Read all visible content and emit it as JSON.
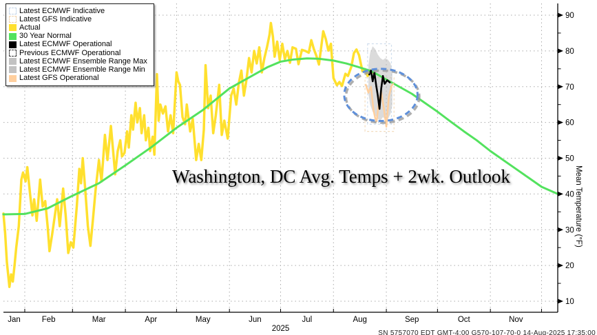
{
  "title": {
    "text": "Washington, DC Avg. Temps + 2wk. Outlook"
  },
  "y_axis": {
    "label": "Mean Temperature (°F)",
    "major_ticks": [
      10,
      20,
      30,
      40,
      50,
      60,
      70,
      80,
      90
    ],
    "minor_ticks": [
      15,
      25,
      35,
      45,
      55,
      65,
      75,
      85
    ]
  },
  "x_axis": {
    "year_label": "2025",
    "months": [
      {
        "label": "Jan",
        "center_day": 6.25
      },
      {
        "label": "Feb",
        "center_day": 26.5
      },
      {
        "label": "Mar",
        "center_day": 56
      },
      {
        "label": "Apr",
        "center_day": 86.5
      },
      {
        "label": "May",
        "center_day": 117
      },
      {
        "label": "Jun",
        "center_day": 147.5
      },
      {
        "label": "Jul",
        "center_day": 178
      },
      {
        "label": "Aug",
        "center_day": 209
      },
      {
        "label": "Sep",
        "center_day": 239.5
      },
      {
        "label": "Oct",
        "center_day": 270
      },
      {
        "label": "Nov",
        "center_day": 300.5
      }
    ],
    "month_boundary_days": [
      12.5,
      40.5,
      71.5,
      101.5,
      132.5,
      162.5,
      193.5,
      224.5,
      254.5,
      285.5,
      315.5
    ]
  },
  "footer": {
    "text": "SN 5757070 EDT   GMT-4:00 G570-107-70-0   14-Aug-2025 17:35:00"
  },
  "legend": {
    "items": [
      {
        "label": "Latest ECMWF Indicative",
        "swatch": "dashed",
        "fill": "#ffffff",
        "border": "#c3d4e8"
      },
      {
        "label": "Latest GFS Indicative",
        "swatch": "dashed",
        "fill": "#ffffff",
        "border": "#f0d2ab"
      },
      {
        "label": "Actual",
        "swatch": "solid",
        "fill": "#ffe02e"
      },
      {
        "label": "30 Year Normal",
        "swatch": "solid",
        "fill": "#53e25e"
      },
      {
        "label": "Latest ECMWF Operational",
        "swatch": "solid",
        "fill": "#000000"
      },
      {
        "label": "Previous ECMWF Operational",
        "swatch": "dashed",
        "fill": "#ffffff",
        "border": "#333333"
      },
      {
        "label": "Latest ECMWF Ensemble Range Max",
        "swatch": "solid",
        "fill": "#c2c2c2"
      },
      {
        "label": "Latest ECMWF Ensemble Range Min",
        "swatch": "solid",
        "fill": "#c2c2c2"
      },
      {
        "label": "Latest GFS Operational",
        "swatch": "solid",
        "fill": "#ffcf9e"
      }
    ]
  },
  "chart_data": {
    "type": "line",
    "title": "Washington, DC Avg. Temps + 2wk. Outlook",
    "xlabel": "2025 (Jan–Dec, daily)",
    "ylabel": "Mean Temperature (°F)",
    "ylim": [
      7,
      93
    ],
    "x_start": "2025-01-19",
    "x_unit": "days since chart start (Jan 19 2025)",
    "x_total_days": 325,
    "grid": "dotted",
    "legend_position": "top-left",
    "series": [
      {
        "name": "Actual",
        "color": "#ffe02e",
        "width": 3.5,
        "points": [
          [
            0,
            34.5
          ],
          [
            1,
            29
          ],
          [
            2,
            21
          ],
          [
            3.5,
            14
          ],
          [
            4.5,
            17.5
          ],
          [
            5.5,
            15.5
          ],
          [
            6.5,
            20
          ],
          [
            7.5,
            25
          ],
          [
            9,
            31
          ],
          [
            10.5,
            44
          ],
          [
            11.5,
            46
          ],
          [
            13,
            43.5
          ],
          [
            14,
            47.5
          ],
          [
            15.5,
            40.5
          ],
          [
            17,
            34
          ],
          [
            18,
            38.5
          ],
          [
            19.5,
            32.5
          ],
          [
            21.5,
            44
          ],
          [
            23,
            36.5
          ],
          [
            24.5,
            38
          ],
          [
            26,
            30.5
          ],
          [
            27,
            24
          ],
          [
            28.5,
            28.5
          ],
          [
            30,
            33.5
          ],
          [
            31.5,
            38.5
          ],
          [
            33,
            31
          ],
          [
            35,
            41.5
          ],
          [
            36.5,
            34
          ],
          [
            38,
            23.5
          ],
          [
            39.5,
            26.5
          ],
          [
            41,
            25
          ],
          [
            43,
            36.5
          ],
          [
            44.5,
            47
          ],
          [
            45.5,
            43
          ],
          [
            46.5,
            50
          ],
          [
            48,
            41
          ],
          [
            49.5,
            31
          ],
          [
            51,
            25.5
          ],
          [
            52.5,
            33
          ],
          [
            54,
            41
          ],
          [
            56,
            49.5
          ],
          [
            57.5,
            43.5
          ],
          [
            59.5,
            56.5
          ],
          [
            61,
            49.5
          ],
          [
            63,
            59
          ],
          [
            64.5,
            51
          ],
          [
            65.5,
            45.5
          ],
          [
            67,
            52
          ],
          [
            68.5,
            55
          ],
          [
            69.5,
            50.5
          ],
          [
            71,
            51.5
          ],
          [
            72.5,
            57.5
          ],
          [
            73.5,
            53
          ],
          [
            75,
            62
          ],
          [
            76,
            58
          ],
          [
            77.5,
            65.5
          ],
          [
            78.5,
            60
          ],
          [
            80,
            64
          ],
          [
            81,
            57
          ],
          [
            82.5,
            62
          ],
          [
            83.5,
            55
          ],
          [
            85,
            58.5
          ],
          [
            86,
            52
          ],
          [
            87.5,
            56
          ],
          [
            88.5,
            51
          ],
          [
            90,
            73.5
          ],
          [
            91,
            60.5
          ],
          [
            92,
            65
          ],
          [
            93.5,
            62.5
          ],
          [
            95,
            64.5
          ],
          [
            96.5,
            57.5
          ],
          [
            98,
            62
          ],
          [
            99.5,
            57
          ],
          [
            101.5,
            74
          ],
          [
            102.5,
            71.5
          ],
          [
            103.5,
            70.5
          ],
          [
            105,
            61.5
          ],
          [
            106.5,
            59.5
          ],
          [
            107.5,
            65
          ],
          [
            109.5,
            57.5
          ],
          [
            111,
            61
          ],
          [
            113,
            49.5
          ],
          [
            114.5,
            54
          ],
          [
            116,
            49.5
          ],
          [
            117.5,
            58
          ],
          [
            118.5,
            76
          ],
          [
            120,
            64
          ],
          [
            121.5,
            67.5
          ],
          [
            123,
            57
          ],
          [
            124.5,
            62
          ],
          [
            126.5,
            70.5
          ],
          [
            128,
            56.5
          ],
          [
            129.5,
            60.5
          ],
          [
            131.5,
            55.5
          ],
          [
            133.5,
            67.5
          ],
          [
            135,
            69.5
          ],
          [
            136.5,
            65
          ],
          [
            138,
            71
          ],
          [
            139.5,
            74.5
          ],
          [
            141,
            67.5
          ],
          [
            142.5,
            72
          ],
          [
            144,
            78
          ],
          [
            145.5,
            74
          ],
          [
            147,
            80
          ],
          [
            148.5,
            76.5
          ],
          [
            150,
            81
          ],
          [
            151.5,
            74
          ],
          [
            153,
            78
          ],
          [
            154.5,
            81
          ],
          [
            156,
            84.5
          ],
          [
            156.8,
            87.8
          ],
          [
            158,
            84
          ],
          [
            159,
            78.4
          ],
          [
            160.5,
            82.6
          ],
          [
            162,
            77.5
          ],
          [
            163.5,
            82
          ],
          [
            165,
            77.7
          ],
          [
            166.5,
            80
          ],
          [
            168,
            76.7
          ],
          [
            169.5,
            81
          ],
          [
            171.5,
            80.6
          ],
          [
            173,
            76.3
          ],
          [
            175,
            80.3
          ],
          [
            177,
            80
          ],
          [
            179,
            79.5
          ],
          [
            180.5,
            83
          ],
          [
            182,
            80.5
          ],
          [
            183.5,
            78.6
          ],
          [
            185,
            76.2
          ],
          [
            187.5,
            85.5
          ],
          [
            189,
            83.3
          ],
          [
            190.5,
            80.1
          ],
          [
            192,
            82
          ],
          [
            193.5,
            72.4
          ],
          [
            195.5,
            70.4
          ],
          [
            197,
            71.3
          ],
          [
            198.5,
            70.2
          ],
          [
            200.5,
            73.6
          ],
          [
            202,
            73
          ],
          [
            204,
            75.6
          ],
          [
            205.5,
            79.4
          ],
          [
            207,
            80.4
          ],
          [
            208.5,
            78.8
          ],
          [
            210.5,
            74.3
          ],
          [
            212,
            74.9
          ],
          [
            213.5,
            73
          ],
          [
            215,
            74.5
          ],
          [
            216.5,
            74
          ]
        ]
      },
      {
        "name": "30 Year Normal",
        "color": "#53e25e",
        "width": 3,
        "points": [
          [
            0,
            34.3
          ],
          [
            12.5,
            34.4
          ],
          [
            26,
            36
          ],
          [
            40.5,
            39.5
          ],
          [
            56,
            43
          ],
          [
            71.5,
            48
          ],
          [
            86.5,
            53
          ],
          [
            101.5,
            58.5
          ],
          [
            117,
            63.5
          ],
          [
            132.5,
            69.5
          ],
          [
            140,
            71.5
          ],
          [
            147.5,
            73.5
          ],
          [
            155,
            75.5
          ],
          [
            162.5,
            77
          ],
          [
            170,
            77.6
          ],
          [
            178,
            77.9
          ],
          [
            185,
            77.8
          ],
          [
            193.5,
            77.3
          ],
          [
            201,
            76.5
          ],
          [
            208,
            75.5
          ],
          [
            216,
            74.3
          ],
          [
            224.5,
            72
          ],
          [
            232,
            70
          ],
          [
            239.5,
            68
          ],
          [
            247,
            65.5
          ],
          [
            254.5,
            63
          ],
          [
            262,
            60.3
          ],
          [
            270,
            57.5
          ],
          [
            277.5,
            55
          ],
          [
            285.5,
            52
          ],
          [
            293,
            49.5
          ],
          [
            300.5,
            47
          ],
          [
            308,
            44.5
          ],
          [
            315.5,
            42
          ],
          [
            325,
            40
          ]
        ]
      },
      {
        "name": "Latest GFS Operational",
        "color": "#ffcf9e",
        "width": 2.5,
        "points": [
          [
            212.5,
            70.5
          ],
          [
            214,
            68.3
          ],
          [
            215.5,
            70
          ],
          [
            217,
            63.4
          ],
          [
            218,
            61.1
          ],
          [
            218.8,
            60.3
          ],
          [
            220,
            65.3
          ],
          [
            221.5,
            68.6
          ],
          [
            223,
            64
          ],
          [
            224.5,
            58.8
          ],
          [
            226,
            67.3
          ],
          [
            227.5,
            70.2
          ],
          [
            228.5,
            70.8
          ]
        ]
      },
      {
        "name": "Latest ECMWF Operational",
        "color": "#000000",
        "width": 2.6,
        "points": [
          [
            214.5,
            73.4
          ],
          [
            215.5,
            74.5
          ],
          [
            216.5,
            71.5
          ],
          [
            217.5,
            74
          ],
          [
            218.5,
            70.5
          ],
          [
            219.5,
            67.5
          ],
          [
            220.5,
            63.8
          ],
          [
            221.5,
            69.5
          ],
          [
            222.5,
            73
          ],
          [
            223.5,
            70.8
          ],
          [
            225,
            71.8
          ],
          [
            226.5,
            71.2
          ]
        ]
      }
    ],
    "ensemble_band": {
      "name": "Latest ECMWF Ensemble Range Max/Min",
      "color": "#bdbdbd",
      "opacity": 0.55,
      "upper": [
        [
          214,
          76
        ],
        [
          215,
          79.5
        ],
        [
          216.5,
          81.3
        ],
        [
          218,
          80.5
        ],
        [
          219.5,
          79
        ],
        [
          221,
          78
        ],
        [
          222.5,
          77.5
        ],
        [
          224,
          78
        ],
        [
          225.5,
          77.5
        ],
        [
          227,
          76.5
        ],
        [
          228,
          74
        ]
      ],
      "lower": [
        [
          214,
          68
        ],
        [
          215,
          65
        ],
        [
          216.5,
          63
        ],
        [
          218,
          62
        ],
        [
          219.5,
          61
        ],
        [
          221,
          60.5
        ],
        [
          222.5,
          61.5
        ],
        [
          224,
          60.8
        ],
        [
          225.5,
          61
        ],
        [
          227,
          62.5
        ],
        [
          228,
          65
        ]
      ]
    },
    "indicative_boxes": [
      {
        "name": "Latest ECMWF Indicative",
        "d0": 213.5,
        "d1": 227.5,
        "t0": 59.5,
        "t1": 82,
        "border": "#c3d4e8"
      },
      {
        "name": "Latest GFS Indicative",
        "d0": 212,
        "d1": 229,
        "t0": 57.5,
        "t1": 72.5,
        "border": "#f0d2ab"
      }
    ],
    "highlight_ellipse": {
      "center_day": 221.3,
      "center_temp": 67.7,
      "rx_days": 21.5,
      "ry_degrees": 7.3,
      "color": "#5f90da",
      "shadow_color": "#9a9a9a",
      "dash": "8 5.5",
      "width": 3
    }
  }
}
